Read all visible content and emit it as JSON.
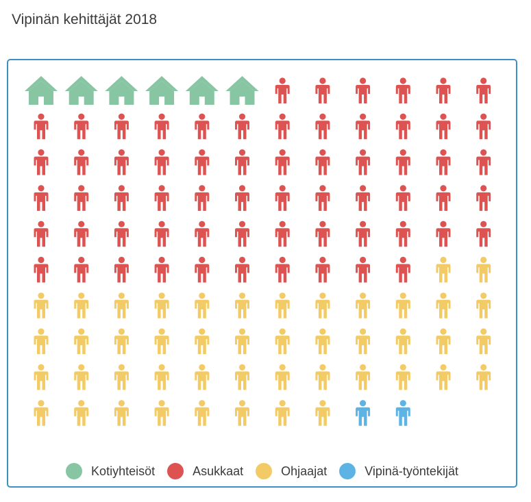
{
  "title": "Vipinän kehittäjät 2018",
  "chart_data": {
    "type": "pictograph",
    "columns": 12,
    "series": [
      {
        "name": "Kotiyhteisöt",
        "value": 6,
        "icon": "house-icon",
        "color": "#88c6a3"
      },
      {
        "name": "Asukkaat",
        "value": 64,
        "icon": "person-icon",
        "color": "#dc5352"
      },
      {
        "name": "Ohjaajat",
        "value": 46,
        "icon": "person-icon",
        "color": "#f2cb66"
      },
      {
        "name": "Vipinä-työntekijät",
        "value": 2,
        "icon": "person-icon",
        "color": "#5db4e4"
      }
    ]
  }
}
